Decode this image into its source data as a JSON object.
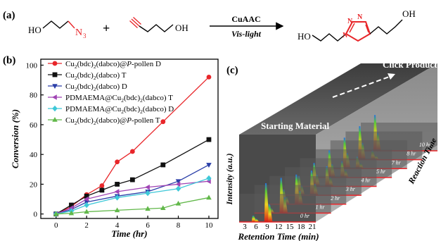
{
  "panel_a": {
    "label": "(a)",
    "reactant1_oh": "HO",
    "reactant1_n3": "N",
    "reactant1_n3_sub": "3",
    "plus": "+",
    "reactant2_oh": "OH",
    "arrow_top": "CuAAC",
    "arrow_bottom": "Vis-light",
    "product_oh_left": "HO",
    "product_oh_right": "OH",
    "triazole_n1": "N",
    "triazole_n2": "N",
    "triazole_n3": "N"
  },
  "panel_b": {
    "label": "(b)",
    "legend": [
      {
        "main": "Cu",
        "sub1": "2",
        "mid": "(bdc)",
        "sub2": "2",
        "tail": "(dabco)@",
        "ital": "P",
        "end": "-pollen D"
      },
      {
        "main": "Cu",
        "sub1": "2",
        "mid": "(bdc)",
        "sub2": "2",
        "tail": "(dabco) T",
        "ital": "",
        "end": ""
      },
      {
        "main": "Cu",
        "sub1": "2",
        "mid": "(bdc)",
        "sub2": "2",
        "tail": "(dabco) D",
        "ital": "",
        "end": ""
      },
      {
        "main": "PDMAEMA@Cu",
        "sub1": "2",
        "mid": "(bdc)",
        "sub2": "2",
        "tail": "(dabco) T",
        "ital": "",
        "end": ""
      },
      {
        "main": "PDMAEMA@Cu",
        "sub1": "2",
        "mid": "(bdc)",
        "sub2": "2",
        "tail": "(dabco) D",
        "ital": "",
        "end": ""
      },
      {
        "main": "Cu",
        "sub1": "2",
        "mid": "(bdc)",
        "sub2": "2",
        "tail": "(dabco)@",
        "ital": "P",
        "end": "-pollen T"
      }
    ]
  },
  "panel_c": {
    "label": "(c)",
    "starting_material": "Starting Material",
    "click_product": "Click Product",
    "ylabel": "Intensity (a.u.)",
    "xlabel": "Retention Time (min)",
    "depth_label": "Reaction Time",
    "x_ticks": [
      "3",
      "6",
      "9",
      "12",
      "15",
      "18",
      "21"
    ],
    "time_labels": [
      "0 hr",
      "1 hr",
      "2 hr",
      "3 hr",
      "4 hr",
      "5 hr",
      "7 hr",
      "8 hr",
      "10 hr"
    ]
  },
  "chart_data": {
    "type": "line",
    "xlabel": "Time (hr)",
    "ylabel": "Conversion (%)",
    "xlim": [
      -1,
      10.6
    ],
    "ylim": [
      -3,
      104
    ],
    "x_ticks": [
      0,
      2,
      4,
      6,
      8,
      10
    ],
    "y_ticks": [
      0,
      20,
      40,
      60,
      80,
      100
    ],
    "grid": false,
    "legend_position": "top-left",
    "series": [
      {
        "name": "Cu2(bdc)2(dabco)@P-pollen D",
        "color": "#e8262a",
        "marker": "circle",
        "x": [
          0,
          1,
          2,
          3,
          4,
          5,
          7,
          10
        ],
        "y": [
          0,
          5,
          13,
          19,
          35,
          42,
          62,
          92
        ]
      },
      {
        "name": "Cu2(bdc)2(dabco) T",
        "color": "#111111",
        "marker": "square",
        "x": [
          0,
          1,
          2,
          3,
          4,
          5,
          7,
          10
        ],
        "y": [
          0,
          6,
          12,
          16,
          20,
          23,
          33,
          50
        ]
      },
      {
        "name": "Cu2(bdc)2(dabco) D",
        "color": "#2a3ea8",
        "marker": "triangle-down",
        "x": [
          0,
          1,
          2,
          4,
          6,
          8,
          10
        ],
        "y": [
          0,
          3,
          8,
          12,
          15,
          22,
          33
        ]
      },
      {
        "name": "PDMAEMA@Cu2(bdc)2(dabco) T",
        "color": "#a044b4",
        "marker": "triangle-left",
        "x": [
          0,
          1,
          2,
          4,
          6,
          8,
          10
        ],
        "y": [
          0,
          4,
          10,
          15,
          18,
          20,
          22
        ]
      },
      {
        "name": "PDMAEMA@Cu2(bdc)2(dabco) D",
        "color": "#3ec8d8",
        "marker": "diamond",
        "x": [
          0,
          1,
          2,
          4,
          6,
          8,
          10
        ],
        "y": [
          0,
          2,
          6,
          11,
          14,
          17,
          24
        ]
      },
      {
        "name": "Cu2(bdc)2(dabco)@P-pollen T",
        "color": "#62b84a",
        "marker": "triangle-up",
        "x": [
          0,
          1,
          2,
          4,
          6,
          7,
          8,
          10
        ],
        "y": [
          0,
          0.5,
          1.5,
          2.5,
          3.5,
          4,
          7,
          11
        ]
      }
    ]
  }
}
